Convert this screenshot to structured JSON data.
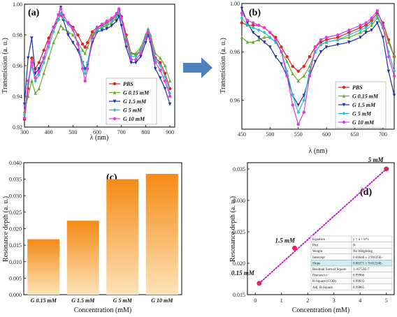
{
  "arrow": {
    "color": "#4f81bd"
  },
  "chart_data": [
    {
      "panel": "(a)",
      "type": "line",
      "xlabel": "λ (nm)",
      "ylabel": "Transmission (a. u.)",
      "xlim": [
        300,
        920
      ],
      "ylim": [
        0.92,
        1.0
      ],
      "xticks": [
        300,
        400,
        500,
        600,
        700,
        800,
        900
      ],
      "yticks": [
        0.92,
        0.94,
        0.96,
        0.98,
        1.0
      ],
      "ytick_labels": [
        "0.92",
        "0.94",
        "0.96",
        "0.98",
        "1.00"
      ],
      "legend_position": "lower-right",
      "x": [
        300,
        315,
        330,
        345,
        360,
        380,
        400,
        420,
        440,
        450,
        460,
        480,
        500,
        520,
        540,
        550,
        560,
        580,
        600,
        620,
        640,
        660,
        680,
        690,
        700,
        720,
        740,
        760,
        780,
        800,
        810,
        820,
        840,
        860,
        880,
        900
      ],
      "series": [
        {
          "name": "PBS",
          "color": "#e02020",
          "marker": "circle",
          "values": [
            0.925,
            0.945,
            0.965,
            0.958,
            0.962,
            0.97,
            0.978,
            0.985,
            0.99,
            0.993,
            0.99,
            0.988,
            0.985,
            0.98,
            0.974,
            0.972,
            0.975,
            0.982,
            0.985,
            0.986,
            0.988,
            0.99,
            0.993,
            0.996,
            0.992,
            0.98,
            0.968,
            0.967,
            0.97,
            0.978,
            0.982,
            0.978,
            0.965,
            0.962,
            0.955,
            0.945
          ]
        },
        {
          "name": "G 0.15 mM",
          "color": "#6aaa2a",
          "marker": "triangle",
          "values": [
            0.93,
            0.94,
            0.95,
            0.942,
            0.945,
            0.955,
            0.965,
            0.975,
            0.982,
            0.986,
            0.984,
            0.982,
            0.98,
            0.975,
            0.97,
            0.968,
            0.972,
            0.98,
            0.984,
            0.985,
            0.986,
            0.988,
            0.991,
            0.994,
            0.99,
            0.978,
            0.968,
            0.968,
            0.972,
            0.98,
            0.984,
            0.98,
            0.968,
            0.965,
            0.96,
            0.95
          ]
        },
        {
          "name": "G 1.5 mM",
          "color": "#1f2fa8",
          "marker": "triangle-down",
          "values": [
            0.935,
            0.965,
            0.978,
            0.955,
            0.958,
            0.965,
            0.975,
            0.985,
            0.993,
            0.998,
            0.99,
            0.98,
            0.975,
            0.97,
            0.962,
            0.958,
            0.96,
            0.975,
            0.982,
            0.983,
            0.984,
            0.986,
            0.989,
            0.992,
            0.986,
            0.972,
            0.962,
            0.962,
            0.966,
            0.975,
            0.98,
            0.975,
            0.958,
            0.952,
            0.945,
            0.935
          ]
        },
        {
          "name": "G 5 mM",
          "color": "#22c1c9",
          "marker": "diamond",
          "values": [
            0.928,
            0.948,
            0.96,
            0.95,
            0.954,
            0.962,
            0.972,
            0.982,
            0.99,
            0.994,
            0.991,
            0.987,
            0.983,
            0.975,
            0.962,
            0.955,
            0.962,
            0.978,
            0.983,
            0.985,
            0.987,
            0.989,
            0.992,
            0.995,
            0.99,
            0.977,
            0.966,
            0.966,
            0.97,
            0.979,
            0.983,
            0.978,
            0.964,
            0.96,
            0.953,
            0.942
          ]
        },
        {
          "name": "G 10 mM",
          "color": "#e03be0",
          "marker": "circle",
          "values": [
            0.926,
            0.95,
            0.962,
            0.952,
            0.956,
            0.965,
            0.975,
            0.985,
            0.993,
            0.997,
            0.993,
            0.988,
            0.984,
            0.974,
            0.958,
            0.95,
            0.958,
            0.978,
            0.985,
            0.987,
            0.989,
            0.991,
            0.994,
            0.997,
            0.991,
            0.976,
            0.964,
            0.964,
            0.968,
            0.978,
            0.982,
            0.977,
            0.962,
            0.957,
            0.95,
            0.94
          ]
        }
      ]
    },
    {
      "panel": "(b)",
      "type": "line",
      "xlabel": "λ (nm)",
      "ylabel": "Transmission (a. u.)",
      "xlim": [
        450,
        720
      ],
      "ylim": [
        0.948,
        1.0
      ],
      "xticks": [
        450,
        500,
        550,
        600,
        650,
        700
      ],
      "yticks": [
        0.96,
        0.98,
        1.0
      ],
      "ytick_labels": [
        "0.96",
        "0.98",
        "1.00"
      ],
      "legend_position": "lower-right",
      "x": [
        450,
        460,
        470,
        480,
        490,
        500,
        510,
        520,
        530,
        540,
        550,
        560,
        570,
        580,
        590,
        600,
        620,
        640,
        660,
        670,
        680,
        690,
        700,
        710,
        720
      ],
      "series": [
        {
          "name": "PBS",
          "color": "#e02020",
          "marker": "circle",
          "values": [
            0.992,
            0.991,
            0.991,
            0.991,
            0.99,
            0.988,
            0.986,
            0.982,
            0.978,
            0.974,
            0.972,
            0.974,
            0.978,
            0.982,
            0.984,
            0.985,
            0.986,
            0.988,
            0.99,
            0.991,
            0.993,
            0.996,
            0.992,
            0.985,
            0.978
          ]
        },
        {
          "name": "G 0.15 mM",
          "color": "#6aaa2a",
          "marker": "triangle",
          "values": [
            0.986,
            0.984,
            0.984,
            0.985,
            0.986,
            0.986,
            0.984,
            0.98,
            0.976,
            0.971,
            0.968,
            0.97,
            0.974,
            0.98,
            0.983,
            0.984,
            0.985,
            0.986,
            0.988,
            0.989,
            0.991,
            0.994,
            0.99,
            0.984,
            0.978
          ]
        },
        {
          "name": "G 1.5 mM",
          "color": "#1f2fa8",
          "marker": "triangle-down",
          "values": [
            0.998,
            0.992,
            0.988,
            0.986,
            0.984,
            0.982,
            0.978,
            0.975,
            0.97,
            0.962,
            0.958,
            0.962,
            0.97,
            0.976,
            0.98,
            0.982,
            0.983,
            0.984,
            0.986,
            0.988,
            0.989,
            0.992,
            0.986,
            0.972,
            0.962
          ]
        },
        {
          "name": "G 5 mM",
          "color": "#22c1c9",
          "marker": "diamond",
          "values": [
            0.994,
            0.991,
            0.99,
            0.989,
            0.988,
            0.986,
            0.984,
            0.98,
            0.972,
            0.962,
            0.955,
            0.96,
            0.972,
            0.98,
            0.983,
            0.984,
            0.985,
            0.987,
            0.989,
            0.99,
            0.992,
            0.995,
            0.99,
            0.98,
            0.972
          ]
        },
        {
          "name": "G 10 mM",
          "color": "#e03be0",
          "marker": "circle",
          "values": [
            0.996,
            0.993,
            0.992,
            0.991,
            0.99,
            0.988,
            0.985,
            0.98,
            0.97,
            0.958,
            0.95,
            0.955,
            0.97,
            0.982,
            0.985,
            0.986,
            0.987,
            0.989,
            0.991,
            0.992,
            0.994,
            0.997,
            0.991,
            0.978,
            0.97
          ]
        }
      ]
    },
    {
      "panel": "(c)",
      "type": "bar",
      "categories": [
        "G 0.15 mM",
        "G 1.5 mM",
        "G 5 mM",
        "G 10 mM"
      ],
      "values": [
        0.0168,
        0.0224,
        0.035,
        0.0366
      ],
      "xlabel": "Concentration (mM)",
      "ylabel": "Resonance depth (a. u.)",
      "ylim": [
        0.0,
        0.04
      ],
      "yticks": [
        0.0,
        0.005,
        0.01,
        0.015,
        0.02,
        0.025,
        0.03,
        0.035,
        0.04
      ],
      "ytick_labels": [
        "0.000",
        "0.005",
        "0.010",
        "0.015",
        "0.020",
        "0.025",
        "0.030",
        "0.035",
        "0.040"
      ],
      "bar_gradient": [
        "#fde3b8",
        "#f58a15"
      ]
    },
    {
      "panel": "(d)",
      "type": "scatter",
      "x": [
        0.15,
        1.5,
        5
      ],
      "y": [
        0.0168,
        0.0224,
        0.035
      ],
      "point_labels": [
        "0.15 mM",
        "1.5 mM",
        "5 mM"
      ],
      "fit_line": {
        "x": [
          0.15,
          5
        ],
        "y": [
          0.0168,
          0.035
        ],
        "color": "#c21fc2"
      },
      "xlabel": "Concentration (mM)",
      "ylabel": "Resonance depth (a. u.)",
      "xlim": [
        -0.3,
        5.3
      ],
      "ylim": [
        0.015,
        0.036
      ],
      "xticks": [
        0,
        1,
        2,
        3,
        4,
        5
      ],
      "yticks": [
        0.015,
        0.02,
        0.025,
        0.03,
        0.035
      ],
      "ytick_labels": [
        "0.015",
        "0.020",
        "0.025",
        "0.030",
        "0.035"
      ],
      "point_color": "#e0245e",
      "fit_table": [
        [
          "Equation",
          "y = a + b*x"
        ],
        [
          "Plot",
          "N"
        ],
        [
          "Weight",
          "No Weighting"
        ],
        [
          "Intercept",
          "0.01646 ± 2.91025E-"
        ],
        [
          "Slope",
          "0.00371 ± 9.65224E-"
        ],
        [
          "Residual Sum of Square",
          "1.16752E-7"
        ],
        [
          "Pearson's r",
          "0.99966"
        ],
        [
          "R-Square (COD)",
          "0.99933"
        ],
        [
          "Adj. R-Square",
          "0.99865"
        ]
      ]
    }
  ]
}
